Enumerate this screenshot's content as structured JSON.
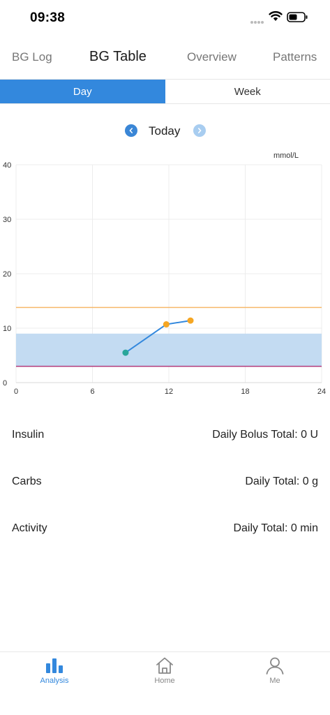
{
  "status_bar": {
    "time": "09:38"
  },
  "top_tabs": [
    {
      "label": "BG Log",
      "active": false
    },
    {
      "label": "BG Table",
      "active": true
    },
    {
      "label": "Overview",
      "active": false
    },
    {
      "label": "Patterns",
      "active": false
    }
  ],
  "segment": {
    "day_label": "Day",
    "week_label": "Week",
    "selected": "Day"
  },
  "date_nav": {
    "label": "Today"
  },
  "chart_data": {
    "type": "line",
    "unit_label": "mmol/L",
    "xlim": [
      0,
      24
    ],
    "ylim": [
      0,
      40
    ],
    "x_ticks": [
      "0",
      "6",
      "12",
      "18",
      "24"
    ],
    "y_ticks": [
      "0",
      "10",
      "20",
      "30",
      "40"
    ],
    "target_range": [
      3,
      9
    ],
    "high_threshold": 13.8,
    "low_threshold": 3,
    "series": [
      {
        "points": [
          {
            "x": 8.6,
            "y": 5.5
          },
          {
            "x": 11.8,
            "y": 10.7
          },
          {
            "x": 13.7,
            "y": 11.4
          }
        ]
      }
    ],
    "colors": {
      "line": "#3388dd",
      "target_band": "#c3dbf2",
      "high_line": "#f6b86a",
      "low_line": "#b03a7a",
      "point_in_range": "#2aa69a",
      "point_high": "#f5a623",
      "grid": "#ececec"
    }
  },
  "summary": {
    "insulin": {
      "label": "Insulin",
      "value": "Daily Bolus Total: 0 U"
    },
    "carbs": {
      "label": "Carbs",
      "value": "Daily Total: 0 g"
    },
    "activity": {
      "label": "Activity",
      "value": "Daily Total: 0 min"
    }
  },
  "bottom_nav": [
    {
      "label": "Analysis",
      "icon": "bar-chart-icon",
      "active": true
    },
    {
      "label": "Home",
      "icon": "home-icon",
      "active": false
    },
    {
      "label": "Me",
      "icon": "person-icon",
      "active": false
    }
  ]
}
